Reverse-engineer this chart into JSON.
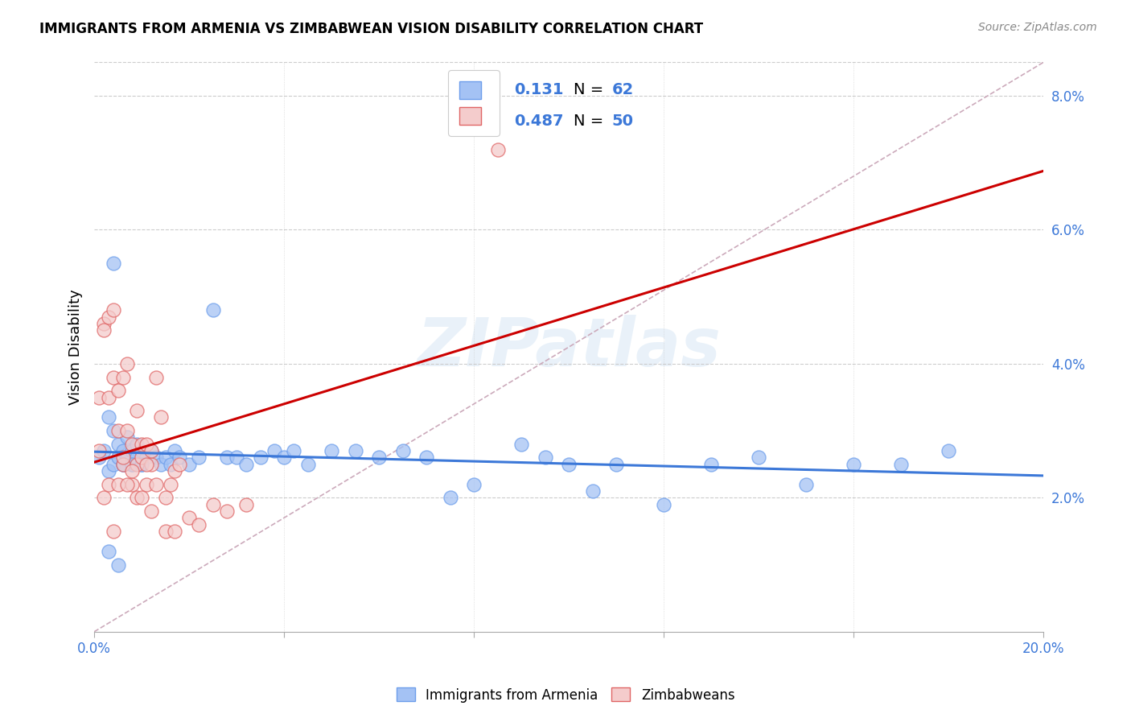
{
  "title": "IMMIGRANTS FROM ARMENIA VS ZIMBABWEAN VISION DISABILITY CORRELATION CHART",
  "source": "Source: ZipAtlas.com",
  "ylabel": "Vision Disability",
  "xlim": [
    0.0,
    0.2
  ],
  "ylim": [
    0.0,
    0.085
  ],
  "legend_blue_R": "0.131",
  "legend_blue_N": "62",
  "legend_pink_R": "0.487",
  "legend_pink_N": "50",
  "blue_fill": "#a4c2f4",
  "pink_fill": "#f4cccc",
  "blue_edge": "#6d9eeb",
  "pink_edge": "#e06666",
  "blue_line": "#3c78d8",
  "pink_line": "#cc0000",
  "dashed_color": "#ccaabb",
  "grid_color": "#cccccc",
  "tick_label_color": "#3c78d8",
  "watermark": "ZIPatlas",
  "blue_scatter_x": [
    0.001,
    0.002,
    0.003,
    0.003,
    0.004,
    0.004,
    0.005,
    0.005,
    0.006,
    0.006,
    0.007,
    0.007,
    0.008,
    0.008,
    0.009,
    0.009,
    0.01,
    0.01,
    0.011,
    0.012,
    0.013,
    0.014,
    0.015,
    0.016,
    0.017,
    0.018,
    0.02,
    0.022,
    0.025,
    0.028,
    0.03,
    0.032,
    0.035,
    0.038,
    0.04,
    0.042,
    0.045,
    0.05,
    0.055,
    0.06,
    0.065,
    0.07,
    0.075,
    0.08,
    0.09,
    0.095,
    0.1,
    0.105,
    0.11,
    0.12,
    0.13,
    0.14,
    0.15,
    0.16,
    0.17,
    0.18,
    0.004,
    0.006,
    0.008,
    0.01,
    0.003,
    0.005
  ],
  "blue_scatter_y": [
    0.026,
    0.027,
    0.024,
    0.032,
    0.025,
    0.03,
    0.026,
    0.028,
    0.025,
    0.027,
    0.026,
    0.029,
    0.025,
    0.027,
    0.026,
    0.028,
    0.025,
    0.027,
    0.026,
    0.027,
    0.026,
    0.025,
    0.026,
    0.025,
    0.027,
    0.026,
    0.025,
    0.026,
    0.048,
    0.026,
    0.026,
    0.025,
    0.026,
    0.027,
    0.026,
    0.027,
    0.025,
    0.027,
    0.027,
    0.026,
    0.027,
    0.026,
    0.02,
    0.022,
    0.028,
    0.026,
    0.025,
    0.021,
    0.025,
    0.019,
    0.025,
    0.026,
    0.022,
    0.025,
    0.025,
    0.027,
    0.055,
    0.025,
    0.025,
    0.025,
    0.012,
    0.01
  ],
  "pink_scatter_x": [
    0.001,
    0.001,
    0.002,
    0.002,
    0.003,
    0.003,
    0.004,
    0.004,
    0.005,
    0.005,
    0.006,
    0.006,
    0.007,
    0.007,
    0.008,
    0.008,
    0.009,
    0.009,
    0.01,
    0.01,
    0.011,
    0.011,
    0.012,
    0.012,
    0.013,
    0.014,
    0.015,
    0.016,
    0.017,
    0.018,
    0.002,
    0.003,
    0.004,
    0.005,
    0.006,
    0.007,
    0.008,
    0.009,
    0.01,
    0.011,
    0.012,
    0.013,
    0.015,
    0.017,
    0.02,
    0.022,
    0.025,
    0.028,
    0.085,
    0.032
  ],
  "pink_scatter_y": [
    0.027,
    0.035,
    0.046,
    0.045,
    0.047,
    0.035,
    0.048,
    0.038,
    0.036,
    0.03,
    0.038,
    0.025,
    0.03,
    0.04,
    0.028,
    0.022,
    0.025,
    0.033,
    0.026,
    0.028,
    0.028,
    0.022,
    0.025,
    0.027,
    0.038,
    0.032,
    0.02,
    0.022,
    0.024,
    0.025,
    0.02,
    0.022,
    0.015,
    0.022,
    0.026,
    0.022,
    0.024,
    0.02,
    0.02,
    0.025,
    0.018,
    0.022,
    0.015,
    0.015,
    0.017,
    0.016,
    0.019,
    0.018,
    0.072,
    0.019
  ]
}
